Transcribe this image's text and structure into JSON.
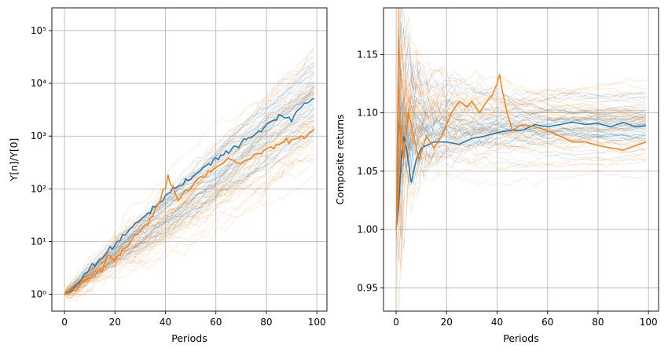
{
  "chart_data": [
    {
      "type": "line",
      "title": "",
      "xlabel": "Periods",
      "ylabel": "Y[n]/Y[0]",
      "yscale": "log",
      "xlim": [
        -5,
        104
      ],
      "ylim": [
        0.48,
        270000
      ],
      "grid": true,
      "legend": "none",
      "xticks": [
        0,
        20,
        40,
        60,
        80,
        100
      ],
      "yticks": [
        {
          "value": 1,
          "label": "10⁰"
        },
        {
          "value": 10,
          "label": "10¹"
        },
        {
          "value": 100,
          "label": "10²"
        },
        {
          "value": 1000,
          "label": "10³"
        },
        {
          "value": 10000,
          "label": "10⁴"
        },
        {
          "value": 100000,
          "label": "10⁵"
        }
      ],
      "series": [
        {
          "color": "#1f77b4",
          "highlight": true,
          "points": [
            [
              0,
              1
            ],
            [
              5,
              1.5
            ],
            [
              10,
              3
            ],
            [
              15,
              5
            ],
            [
              20,
              9
            ],
            [
              25,
              15
            ],
            [
              30,
              25
            ],
            [
              35,
              40
            ],
            [
              40,
              65
            ],
            [
              45,
              110
            ],
            [
              50,
              160
            ],
            [
              55,
              250
            ],
            [
              60,
              380
            ],
            [
              65,
              500
            ],
            [
              70,
              700
            ],
            [
              75,
              1000
            ],
            [
              80,
              1500
            ],
            [
              85,
              2400
            ],
            [
              90,
              2000
            ],
            [
              95,
              4000
            ],
            [
              99,
              5000
            ]
          ]
        },
        {
          "color": "#ff7f0e",
          "highlight": true,
          "points": [
            [
              0,
              1
            ],
            [
              5,
              1.3
            ],
            [
              10,
              2
            ],
            [
              15,
              3
            ],
            [
              18,
              6
            ],
            [
              20,
              4.5
            ],
            [
              25,
              8
            ],
            [
              30,
              15
            ],
            [
              35,
              30
            ],
            [
              38,
              60
            ],
            [
              40,
              110
            ],
            [
              41,
              220
            ],
            [
              42,
              130
            ],
            [
              45,
              60
            ],
            [
              50,
              100
            ],
            [
              55,
              170
            ],
            [
              60,
              250
            ],
            [
              65,
              350
            ],
            [
              70,
              300
            ],
            [
              75,
              400
            ],
            [
              80,
              550
            ],
            [
              85,
              700
            ],
            [
              90,
              800
            ],
            [
              95,
              1000
            ],
            [
              99,
              1300
            ]
          ]
        }
      ],
      "background_bundles": [
        {
          "color": "#1f77b4",
          "count": 45,
          "mean_log10_growth_per_period": 0.0375,
          "log10_volatility_per_period": 0.025
        },
        {
          "color": "#ff7f0e",
          "count": 45,
          "mean_log10_growth_per_period": 0.0365,
          "log10_volatility_per_period": 0.045
        }
      ]
    },
    {
      "type": "line",
      "title": "",
      "xlabel": "Periods",
      "ylabel": "Composite returns",
      "yscale": "linear",
      "xlim": [
        -5,
        104
      ],
      "ylim": [
        0.93,
        1.19
      ],
      "grid": true,
      "legend": "none",
      "xticks": [
        0,
        20,
        40,
        60,
        80,
        100
      ],
      "yticks": [
        {
          "value": 0.95,
          "label": "0.95"
        },
        {
          "value": 1.0,
          "label": "1.00"
        },
        {
          "value": 1.05,
          "label": "1.05"
        },
        {
          "value": 1.1,
          "label": "1.10"
        },
        {
          "value": 1.15,
          "label": "1.15"
        }
      ],
      "series": [
        {
          "color": "#1f77b4",
          "highlight": true,
          "points": [
            [
              0,
              1.0
            ],
            [
              1,
              1.02
            ],
            [
              2,
              1.06
            ],
            [
              3,
              1.08
            ],
            [
              4,
              1.07
            ],
            [
              6,
              1.04
            ],
            [
              8,
              1.06
            ],
            [
              10,
              1.07
            ],
            [
              15,
              1.075
            ],
            [
              20,
              1.075
            ],
            [
              25,
              1.073
            ],
            [
              30,
              1.078
            ],
            [
              35,
              1.08
            ],
            [
              40,
              1.083
            ],
            [
              45,
              1.085
            ],
            [
              50,
              1.085
            ],
            [
              55,
              1.09
            ],
            [
              60,
              1.088
            ],
            [
              65,
              1.09
            ],
            [
              70,
              1.092
            ],
            [
              75,
              1.09
            ],
            [
              80,
              1.091
            ],
            [
              85,
              1.088
            ],
            [
              90,
              1.092
            ],
            [
              95,
              1.088
            ],
            [
              99,
              1.089
            ]
          ]
        },
        {
          "color": "#ff7f0e",
          "highlight": true,
          "points": [
            [
              0,
              1.0
            ],
            [
              1,
              1.04
            ],
            [
              2,
              1.09
            ],
            [
              3,
              1.06
            ],
            [
              5,
              1.1
            ],
            [
              7,
              1.08
            ],
            [
              9,
              1.06
            ],
            [
              12,
              1.08
            ],
            [
              15,
              1.07
            ],
            [
              18,
              1.08
            ],
            [
              20,
              1.09
            ],
            [
              22,
              1.1
            ],
            [
              25,
              1.11
            ],
            [
              28,
              1.105
            ],
            [
              30,
              1.11
            ],
            [
              33,
              1.1
            ],
            [
              36,
              1.11
            ],
            [
              38,
              1.115
            ],
            [
              40,
              1.125
            ],
            [
              41,
              1.133
            ],
            [
              42,
              1.12
            ],
            [
              44,
              1.1
            ],
            [
              46,
              1.085
            ],
            [
              50,
              1.09
            ],
            [
              55,
              1.088
            ],
            [
              60,
              1.085
            ],
            [
              65,
              1.08
            ],
            [
              70,
              1.075
            ],
            [
              75,
              1.075
            ],
            [
              80,
              1.072
            ],
            [
              85,
              1.07
            ],
            [
              90,
              1.068
            ],
            [
              95,
              1.072
            ],
            [
              99,
              1.075
            ]
          ]
        }
      ],
      "background_bundles": [
        {
          "color": "#1f77b4",
          "count": 45,
          "mean_return": 1.09,
          "spread": 0.012
        },
        {
          "color": "#ff7f0e",
          "count": 45,
          "mean_return": 1.088,
          "spread": 0.02
        }
      ]
    }
  ]
}
